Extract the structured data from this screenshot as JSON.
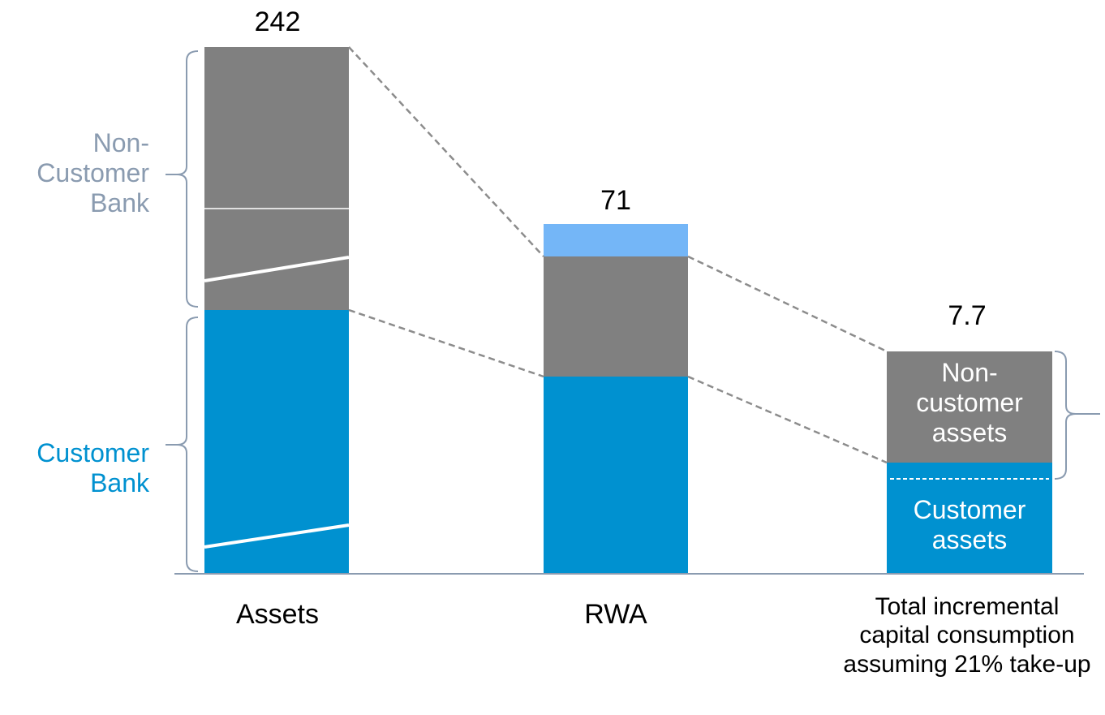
{
  "columns": [
    {
      "label": "Assets",
      "total": "242"
    },
    {
      "label": "RWA",
      "total": "71"
    },
    {
      "label": "Total incremental capital consumption assuming 21% take-up",
      "total": "7.7",
      "segments": [
        "Non-customer assets",
        "Customer assets"
      ]
    }
  ],
  "brackets": [
    "Non-Customer Bank",
    "Customer Bank"
  ]
}
